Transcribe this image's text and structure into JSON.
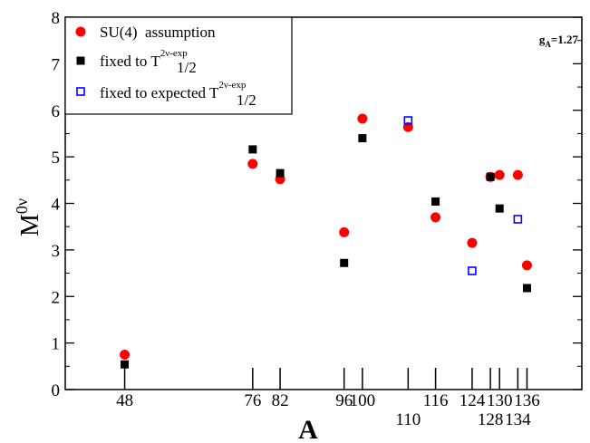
{
  "chart_data": {
    "type": "scatter",
    "xlabel": "A",
    "ylabel_main": "M",
    "ylabel_sup": "0ν",
    "ylim": [
      0,
      8
    ],
    "y_ticks": [
      0,
      1,
      2,
      3,
      4,
      5,
      6,
      7,
      8
    ],
    "xlim": [
      35,
      148
    ],
    "x_tick_positions": [
      48,
      76,
      82,
      96,
      100,
      110,
      116,
      124,
      128,
      130,
      134,
      136
    ],
    "x_ticks_row1": [
      {
        "x": 48,
        "label": "48"
      },
      {
        "x": 76,
        "label": "76"
      },
      {
        "x": 82,
        "label": "82"
      },
      {
        "x": 96,
        "label": "96"
      },
      {
        "x": 100,
        "label": "100"
      },
      {
        "x": 116,
        "label": "116"
      },
      {
        "x": 124,
        "label": "124"
      },
      {
        "x": 130,
        "label": "130"
      },
      {
        "x": 136,
        "label": "136"
      }
    ],
    "x_ticks_row2": [
      {
        "x": 110,
        "label": "110"
      },
      {
        "x": 128,
        "label": "128"
      },
      {
        "x": 134,
        "label": "134"
      }
    ],
    "annotation": {
      "main": "g",
      "sub": "A",
      "rest": "=1.27"
    },
    "series": [
      {
        "name": "SU(4)  assumption",
        "marker": "circle",
        "color": "#ff0000",
        "points": [
          [
            48,
            0.75
          ],
          [
            76,
            4.85
          ],
          [
            82,
            4.52
          ],
          [
            96,
            3.38
          ],
          [
            100,
            5.82
          ],
          [
            110,
            5.64
          ],
          [
            116,
            3.7
          ],
          [
            124,
            3.15
          ],
          [
            128,
            4.57
          ],
          [
            130,
            4.61
          ],
          [
            134,
            4.61
          ],
          [
            136,
            2.67
          ]
        ]
      },
      {
        "name_main": "fixed to T",
        "name_sub": "1/2",
        "name_sup": "2ν-exp",
        "marker": "square",
        "color": "#000000",
        "points": [
          [
            48,
            0.54
          ],
          [
            76,
            5.16
          ],
          [
            82,
            4.65
          ],
          [
            96,
            2.72
          ],
          [
            100,
            5.4
          ],
          [
            116,
            4.04
          ],
          [
            128,
            4.57
          ],
          [
            130,
            3.89
          ],
          [
            136,
            2.18
          ]
        ]
      },
      {
        "name_main": "fixed to expected T",
        "name_sub": "1/2",
        "name_sup": "2ν-exp",
        "marker": "open-square",
        "color": "#0000ff",
        "points": [
          [
            110,
            5.78
          ],
          [
            124,
            2.55
          ],
          [
            134,
            3.66
          ]
        ]
      }
    ]
  }
}
